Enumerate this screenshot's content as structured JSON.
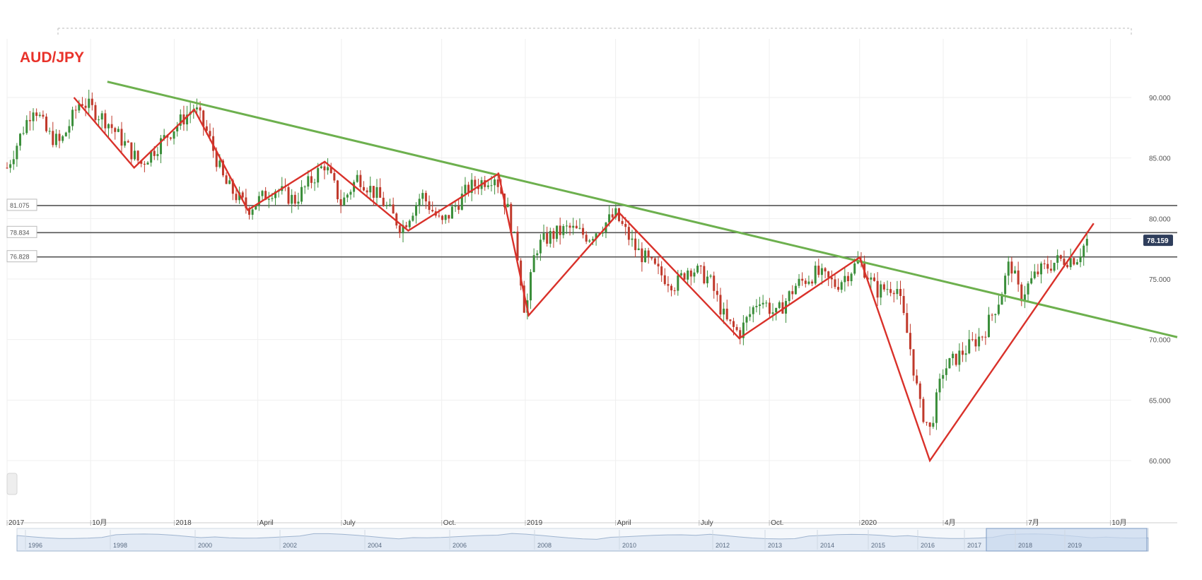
{
  "chart_data": {
    "type": "line",
    "title": "AUD/JPY",
    "title_color": "#e8322a",
    "price_axis": {
      "ticks": [
        {
          "value": 90,
          "label": "90.000"
        },
        {
          "value": 85,
          "label": "85.000"
        },
        {
          "value": 80,
          "label": "80.000"
        },
        {
          "value": 75,
          "label": "75.000"
        },
        {
          "value": 70,
          "label": "70.000"
        },
        {
          "value": 65,
          "label": "65.000"
        },
        {
          "value": 60,
          "label": "60.000"
        }
      ],
      "ylim": [
        60,
        90
      ]
    },
    "time_axis": {
      "ticks": [
        {
          "t": 0,
          "label": "2017"
        },
        {
          "t": 0.25,
          "label": "10月"
        },
        {
          "t": 0.5,
          "label": "2018"
        },
        {
          "t": 0.75,
          "label": "April"
        },
        {
          "t": 1.0,
          "label": "July"
        },
        {
          "t": 1.3,
          "label": "Oct."
        },
        {
          "t": 1.55,
          "label": "2019"
        },
        {
          "t": 1.82,
          "label": "April"
        },
        {
          "t": 2.07,
          "label": "July"
        },
        {
          "t": 2.28,
          "label": "Oct."
        },
        {
          "t": 2.55,
          "label": "2020"
        },
        {
          "t": 2.8,
          "label": "4月"
        },
        {
          "t": 3.05,
          "label": "7月"
        },
        {
          "t": 3.3,
          "label": "10月"
        }
      ],
      "xlim": [
        0,
        3.5
      ]
    },
    "navigator_labels": [
      "1996",
      "1998",
      "2000",
      "2002",
      "2004",
      "2006",
      "2008",
      "2010",
      "2012",
      "2013",
      "2014",
      "2015",
      "2016",
      "2017",
      "2018",
      "2019"
    ],
    "price_series": {
      "name": "AUD/JPY",
      "anchors": [
        [
          0,
          84.2
        ],
        [
          0.05,
          87.5
        ],
        [
          0.08,
          89.4
        ],
        [
          0.12,
          87.0
        ],
        [
          0.16,
          86.2
        ],
        [
          0.22,
          89.8
        ],
        [
          0.3,
          88.0
        ],
        [
          0.4,
          84.5
        ],
        [
          0.5,
          87.5
        ],
        [
          0.56,
          89.2
        ],
        [
          0.6,
          87.0
        ],
        [
          0.65,
          83.0
        ],
        [
          0.72,
          80.8
        ],
        [
          0.8,
          82.5
        ],
        [
          0.86,
          81.5
        ],
        [
          0.95,
          84.5
        ],
        [
          1.0,
          81.2
        ],
        [
          1.05,
          83.5
        ],
        [
          1.12,
          81.5
        ],
        [
          1.18,
          79.2
        ],
        [
          1.24,
          82.0
        ],
        [
          1.3,
          79.5
        ],
        [
          1.38,
          82.5
        ],
        [
          1.46,
          83.6
        ],
        [
          1.5,
          80.5
        ],
        [
          1.53,
          76.5
        ],
        [
          1.55,
          72.0
        ],
        [
          1.58,
          77.5
        ],
        [
          1.62,
          78.5
        ],
        [
          1.68,
          79.2
        ],
        [
          1.74,
          78.5
        ],
        [
          1.82,
          80.3
        ],
        [
          1.88,
          77.5
        ],
        [
          1.95,
          75.5
        ],
        [
          2.0,
          74.5
        ],
        [
          2.04,
          76.0
        ],
        [
          2.1,
          75.0
        ],
        [
          2.15,
          71.5
        ],
        [
          2.19,
          70.5
        ],
        [
          2.25,
          73.5
        ],
        [
          2.3,
          72.0
        ],
        [
          2.36,
          74.5
        ],
        [
          2.42,
          75.5
        ],
        [
          2.48,
          74.5
        ],
        [
          2.55,
          76.5
        ],
        [
          2.6,
          74.0
        ],
        [
          2.66,
          74.5
        ],
        [
          2.7,
          69.5
        ],
        [
          2.73,
          64.5
        ],
        [
          2.76,
          62.5
        ],
        [
          2.8,
          67.5
        ],
        [
          2.86,
          69.0
        ],
        [
          2.92,
          70.5
        ],
        [
          2.97,
          73.5
        ],
        [
          3.0,
          76.5
        ],
        [
          3.03,
          73.5
        ],
        [
          3.08,
          75.5
        ],
        [
          3.14,
          76.5
        ],
        [
          3.2,
          76.8
        ],
        [
          3.23,
          78.2
        ]
      ],
      "last_value_label": "78.159",
      "up_color": "#3a8e3a",
      "down_color": "#c0392b"
    },
    "horizontal_levels": [
      {
        "value": 81.075,
        "label": "81.075"
      },
      {
        "value": 78.834,
        "label": "78.834"
      },
      {
        "value": 76.828,
        "label": "76.828"
      }
    ],
    "zigzag_line": {
      "color": "#d9312a",
      "points": [
        [
          0.2,
          90.0
        ],
        [
          0.38,
          84.2
        ],
        [
          0.56,
          89.0
        ],
        [
          0.72,
          80.7
        ],
        [
          0.95,
          84.7
        ],
        [
          1.2,
          79.0
        ],
        [
          1.47,
          83.7
        ],
        [
          1.56,
          72.0
        ],
        [
          1.83,
          80.5
        ],
        [
          2.19,
          70.1
        ],
        [
          2.55,
          76.8
        ],
        [
          2.76,
          60.0
        ],
        [
          3.25,
          79.6
        ]
      ]
    },
    "trend_line": {
      "color": "#6db04e",
      "points": [
        [
          0.3,
          91.3
        ],
        [
          3.5,
          70.2
        ]
      ]
    }
  }
}
